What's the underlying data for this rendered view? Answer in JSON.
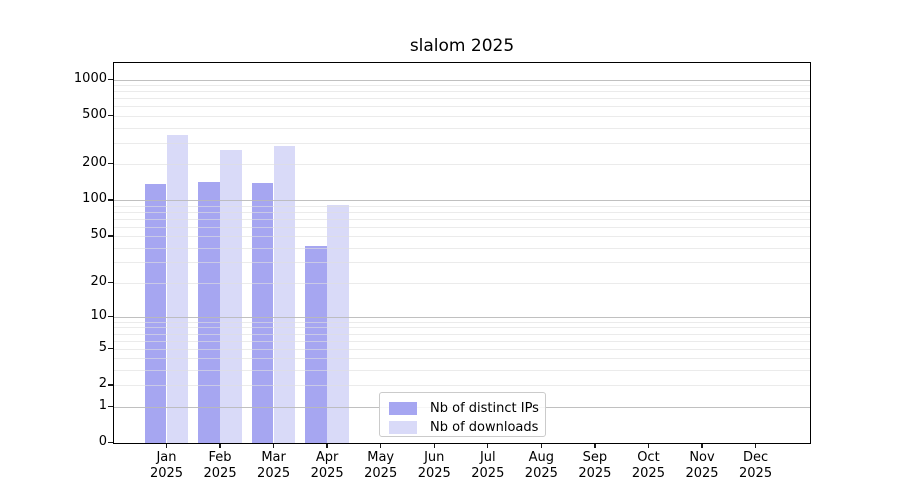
{
  "title": "slalom 2025",
  "chart_data": {
    "type": "bar",
    "title": "slalom 2025",
    "categories": [
      "Jan",
      "Feb",
      "Mar",
      "Apr",
      "May",
      "Jun",
      "Jul",
      "Aug",
      "Sep",
      "Oct",
      "Nov",
      "Dec"
    ],
    "year": "2025",
    "series": [
      {
        "name": "Nb of distinct IPs",
        "color": "#a6a6f1",
        "values": [
          136,
          142,
          140,
          41,
          0,
          0,
          0,
          0,
          0,
          0,
          0,
          0
        ]
      },
      {
        "name": "Nb of downloads",
        "color": "#d9daf8",
        "values": [
          350,
          264,
          280,
          92,
          0,
          0,
          0,
          0,
          0,
          0,
          0,
          0
        ]
      }
    ],
    "y_axis": {
      "scale": "log1p",
      "tick_values": [
        0,
        1,
        2,
        5,
        10,
        20,
        50,
        100,
        200,
        500,
        1000
      ],
      "tick_labels": [
        "0",
        "1",
        "2",
        "5",
        "10",
        "20",
        "50",
        "100",
        "200",
        "500",
        "1000"
      ],
      "top_value": 1400
    },
    "grid": {
      "major_values": [
        1,
        10,
        100,
        1000
      ],
      "minor_values": [
        2,
        3,
        4,
        5,
        6,
        7,
        8,
        9,
        20,
        30,
        40,
        50,
        60,
        70,
        80,
        90,
        200,
        300,
        400,
        500,
        600,
        700,
        800,
        900
      ],
      "major_color": "#bababa",
      "minor_color": "#ebebeb"
    },
    "legend": {
      "position": "bottom-center",
      "entries": [
        "Nb of distinct IPs",
        "Nb of downloads"
      ]
    }
  }
}
